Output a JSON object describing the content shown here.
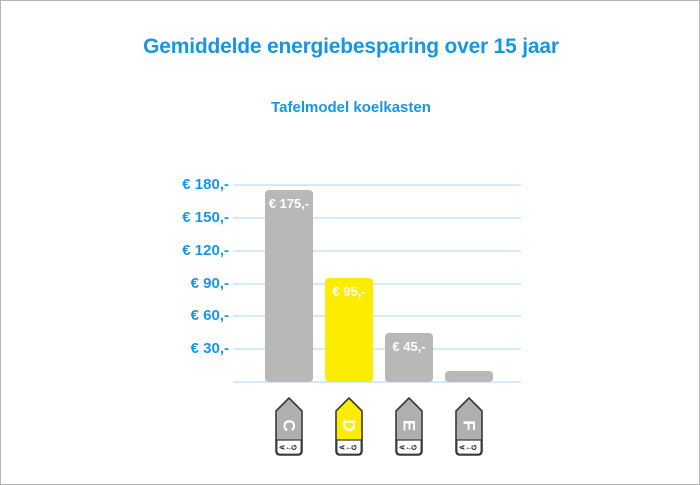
{
  "frame": {
    "background": "#ffffff",
    "border_color": "#b5b5b5"
  },
  "header": {
    "title": "Gemiddelde energiebesparing over 15 jaar",
    "subtitle": "Tafelmodel koelkasten",
    "text_color": "#1697E4"
  },
  "chart_data": {
    "type": "bar",
    "title": "Gemiddelde energiebesparing over 15 jaar",
    "subtitle": "Tafelmodel koelkasten",
    "categories": [
      "C",
      "D",
      "E",
      "F"
    ],
    "values": [
      175,
      95,
      45,
      10
    ],
    "bar_value_labels": [
      "€ 175,-",
      "€ 95,-",
      "€ 45,-",
      ""
    ],
    "bar_colors": [
      "#B8B8B8",
      "#FCEC00",
      "#B8B8B8",
      "#B8B8B8"
    ],
    "highlight_index": 1,
    "y_ticks": [
      {
        "value": 180,
        "label": "€ 180,-"
      },
      {
        "value": 150,
        "label": "€ 150,-"
      },
      {
        "value": 120,
        "label": "€ 120,-"
      },
      {
        "value": 90,
        "label": "€ 90,-"
      },
      {
        "value": 60,
        "label": "€ 60,-"
      },
      {
        "value": 30,
        "label": "€ 30,-"
      }
    ],
    "ylim": [
      0,
      180
    ],
    "grid": true,
    "legend_position": "none",
    "colors": {
      "grid": "#D5EAF8",
      "axis_label": "#1697E4",
      "bar_label": "#FFFFFF"
    }
  },
  "energy_tags": [
    {
      "class": "C",
      "scale": "A←G",
      "fill": "#AFAFAF",
      "letter_color": "#FFFFFF",
      "border_color": "#3A3A3A"
    },
    {
      "class": "D",
      "scale": "A←G",
      "fill": "#FCEC00",
      "letter_color": "#FFFFFF",
      "border_color": "#3A3A3A"
    },
    {
      "class": "E",
      "scale": "A←G",
      "fill": "#AFAFAF",
      "letter_color": "#FFFFFF",
      "border_color": "#3A3A3A"
    },
    {
      "class": "F",
      "scale": "A←G",
      "fill": "#AFAFAF",
      "letter_color": "#FFFFFF",
      "border_color": "#3A3A3A"
    }
  ]
}
